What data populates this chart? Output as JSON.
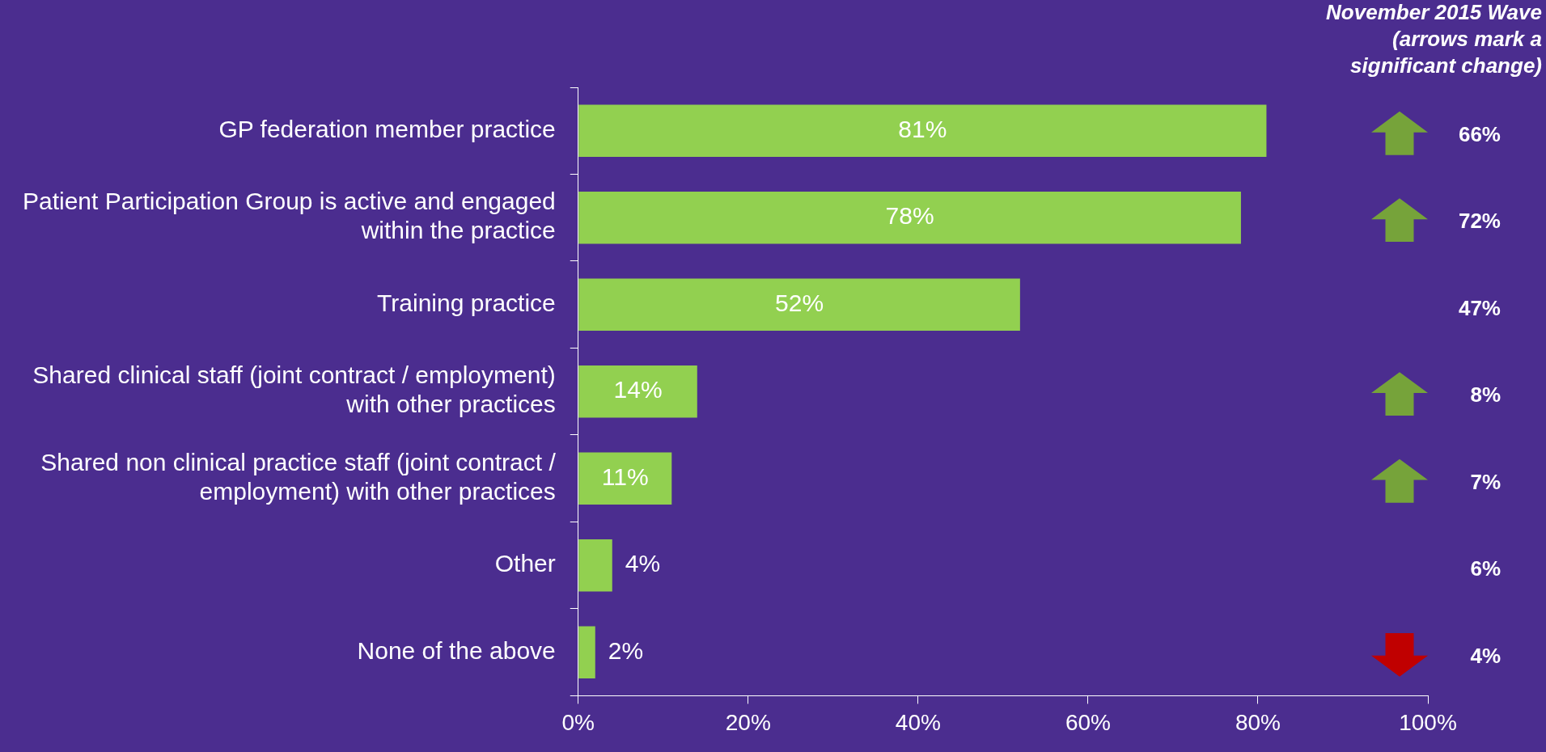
{
  "chart_data": {
    "type": "bar",
    "orientation": "horizontal",
    "categories": [
      "GP federation member practice",
      "Patient Participation Group is active and engaged within the practice",
      "Training practice",
      "Shared clinical staff (joint contract / employment) with other practices",
      "Shared non clinical practice staff (joint contract / employment) with other practices",
      "Other",
      "None of the above"
    ],
    "values": [
      81,
      78,
      52,
      14,
      11,
      4,
      2
    ],
    "value_labels": [
      "81%",
      "78%",
      "52%",
      "14%",
      "11%",
      "4%",
      "2%"
    ],
    "color": "#92d050",
    "xlim": [
      0,
      100
    ],
    "xticks": [
      {
        "value": 0,
        "label": "0%"
      },
      {
        "value": 20,
        "label": "20%"
      },
      {
        "value": 40,
        "label": "40%"
      },
      {
        "value": 60,
        "label": "60%"
      },
      {
        "value": 80,
        "label": "80%"
      },
      {
        "value": 100,
        "label": "100%"
      }
    ],
    "grid": false,
    "legend": false,
    "annotations": [
      "November 2015 Wave (arrows mark a significant change)",
      "66%",
      "72%",
      "47%",
      "8%",
      "7%",
      "6%",
      "4%"
    ]
  }
}
